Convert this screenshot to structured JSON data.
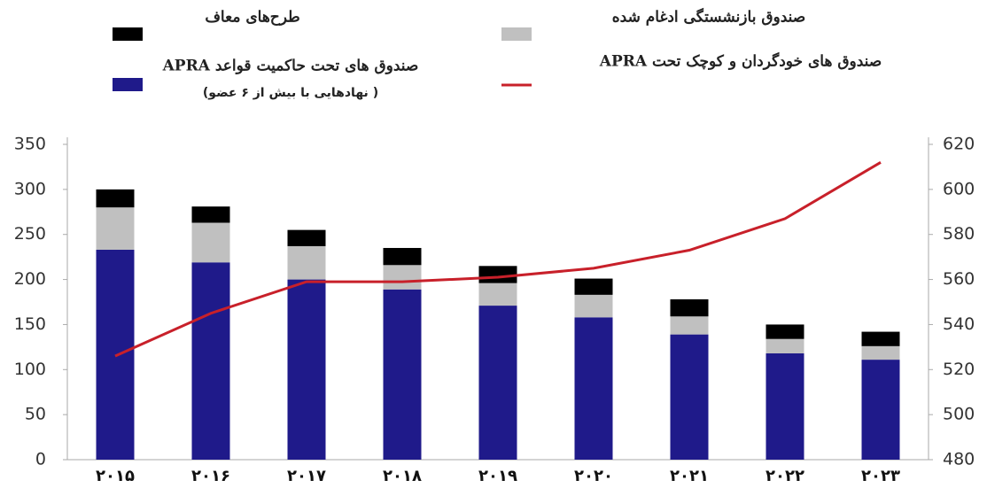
{
  "chart_data": {
    "type": "bar",
    "stacked": true,
    "categories": [
      "۲۰۱۵",
      "۲۰۱۶",
      "۲۰۱۷",
      "۲۰۱۸",
      "۲۰۱۹",
      "۲۰۲۰",
      "۲۰۲۱",
      "۲۰۲۲",
      "۲۰۲۳"
    ],
    "series": [
      {
        "name": "صندوق های تحت حاکمیت قواعد APRA",
        "name_line2": "( نهادهایی با بیش از ۶ عضو)",
        "color": "#1f1a8a",
        "values": [
          233,
          219,
          200,
          189,
          171,
          158,
          139,
          118,
          111
        ]
      },
      {
        "name": "صندوق بازنشستگی ادغام شده",
        "color": "#c0c0c0",
        "values": [
          47,
          44,
          37,
          27,
          25,
          25,
          20,
          16,
          15
        ]
      },
      {
        "name": "طرح‌های معاف",
        "color": "#000000",
        "values": [
          20,
          18,
          18,
          19,
          19,
          18,
          19,
          16,
          16
        ]
      },
      {
        "name": "صندوق های خودگردان و کوچک تحت APRA",
        "type": "line",
        "axis": "y2",
        "color": "#c8202a",
        "values": [
          526,
          545,
          559,
          559,
          561,
          565,
          573,
          587,
          612
        ]
      }
    ],
    "ylim": [
      0,
      350
    ],
    "yticks": [
      0,
      50,
      100,
      150,
      200,
      250,
      300,
      350
    ],
    "y2lim": [
      480,
      620
    ],
    "y2ticks": [
      480,
      500,
      520,
      540,
      560,
      580,
      600,
      620
    ],
    "grid": false
  }
}
